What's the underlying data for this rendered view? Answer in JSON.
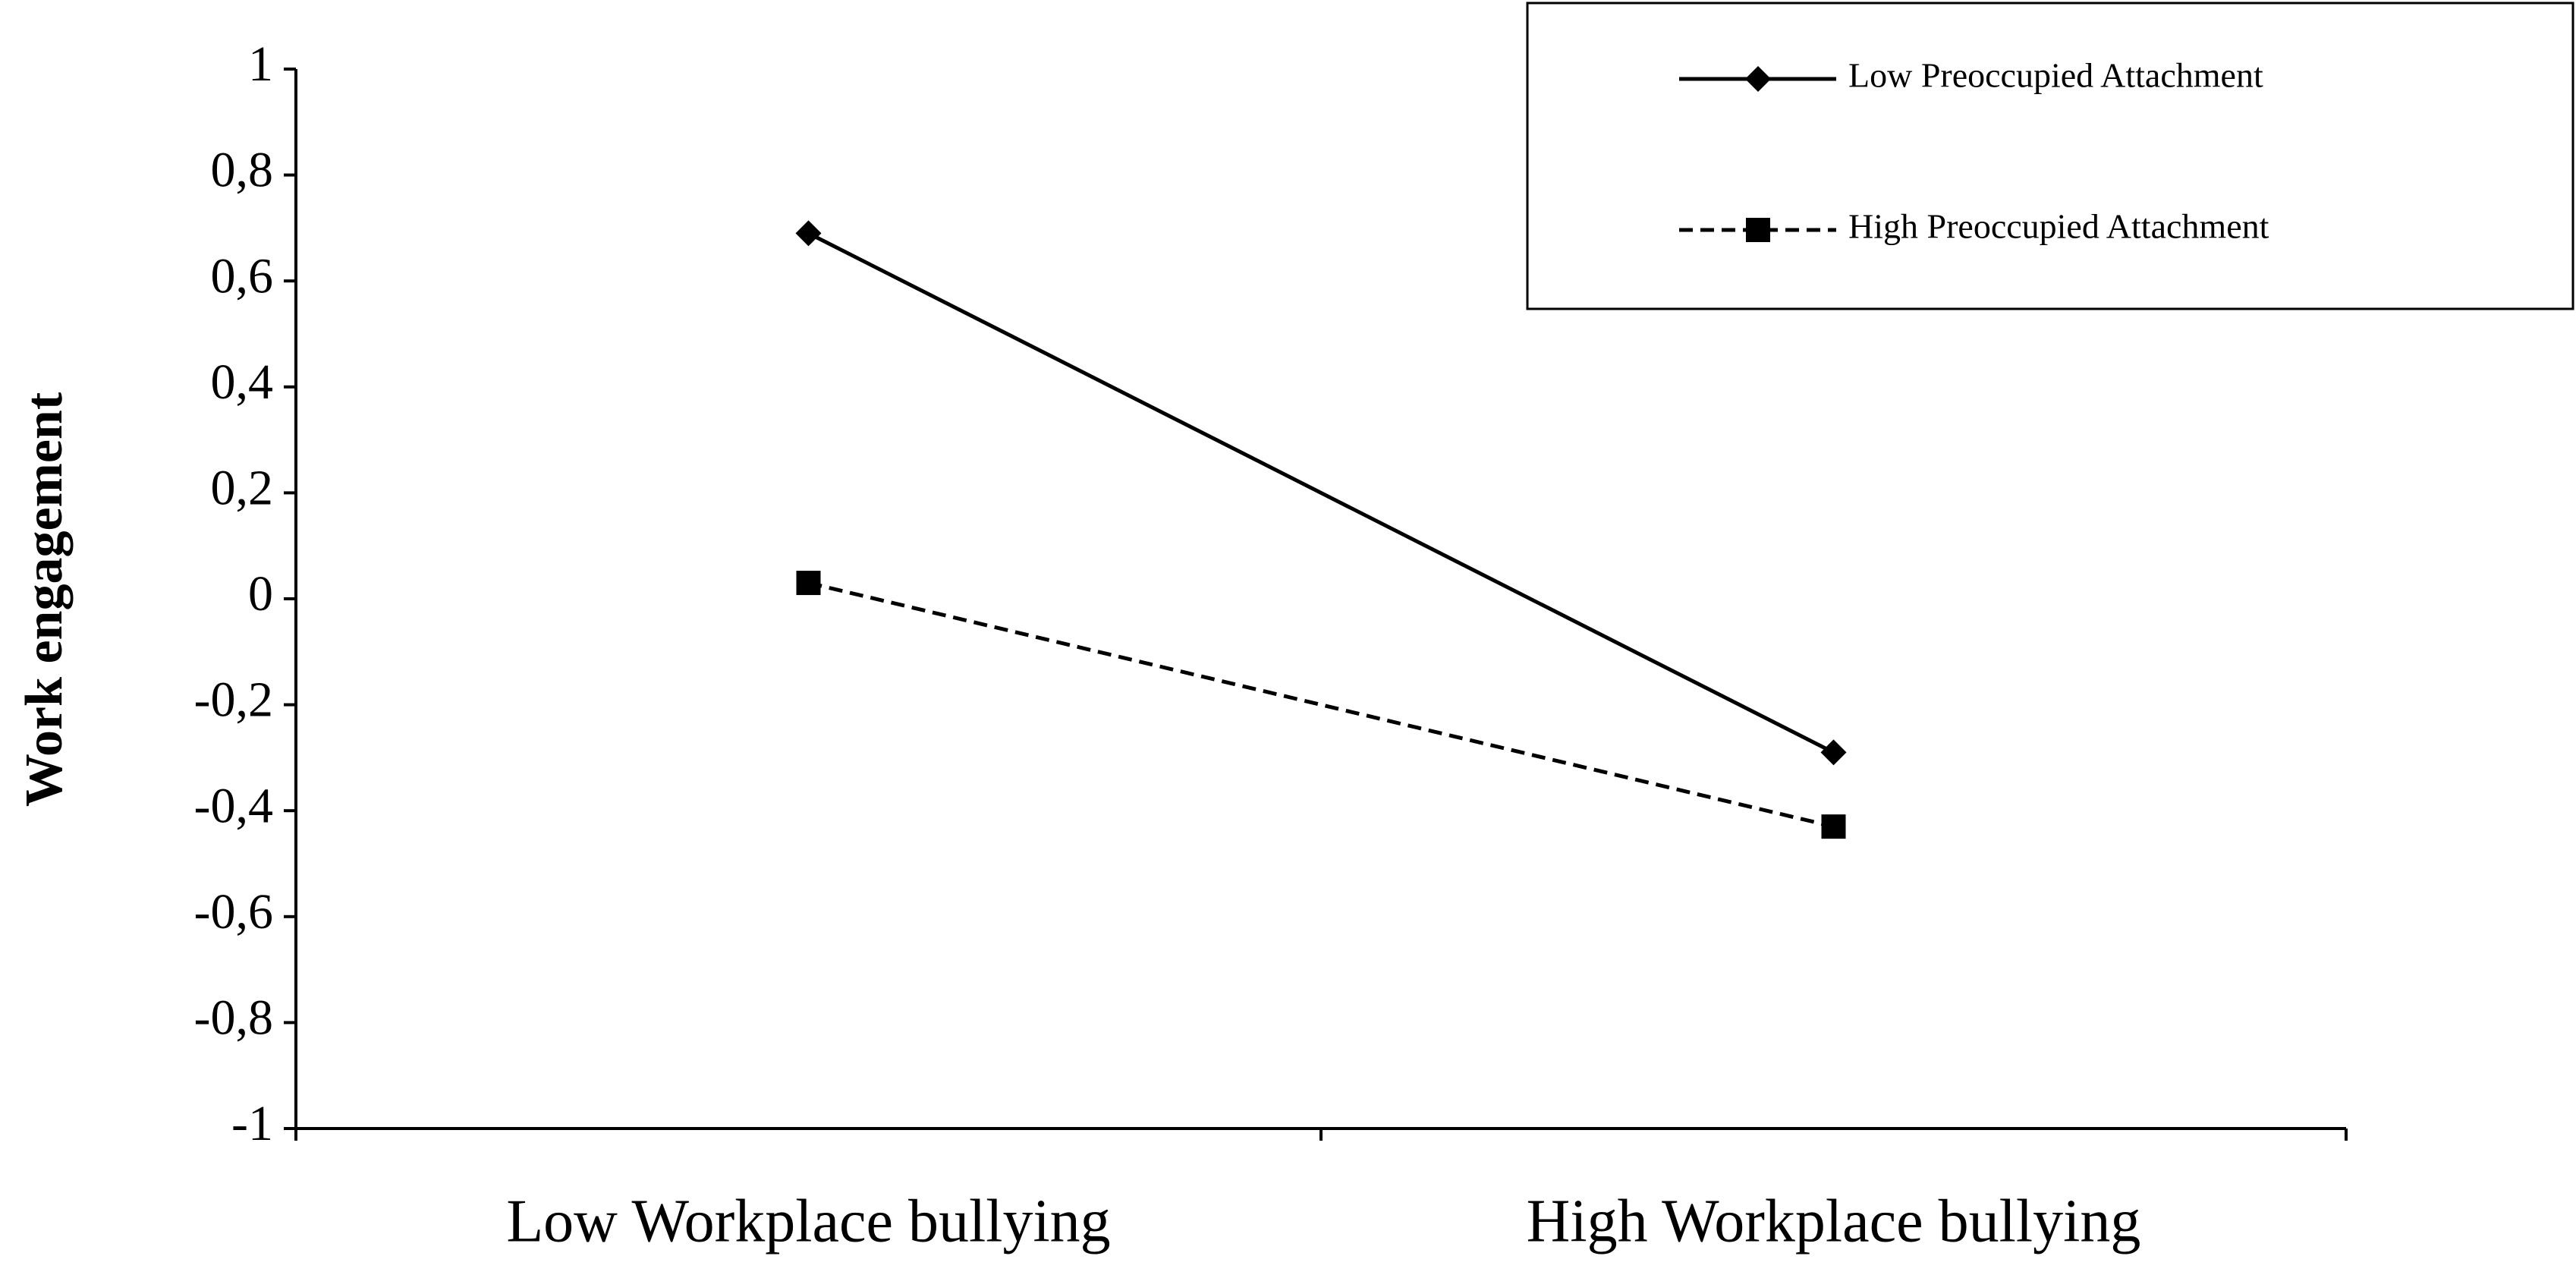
{
  "chart_data": {
    "type": "line",
    "y_label": "Work engagement",
    "categories": [
      "Low Workplace bullying",
      "High Workplace bullying"
    ],
    "series": [
      {
        "name": "Low Preoccupied Attachment",
        "color": "#000000",
        "line_style": "solid",
        "marker": "diamond",
        "values": [
          0.69,
          -0.29
        ]
      },
      {
        "name": "High Preoccupied Attachment",
        "color": "#000000",
        "line_style": "dashed",
        "marker": "square",
        "values": [
          0.03,
          -0.43
        ]
      }
    ],
    "ylim": [
      -1,
      1
    ],
    "yticks": [
      -1,
      {
        "value": -0.8,
        "label": "-0,8"
      },
      {
        "value": -0.6,
        "label": "-0,6"
      },
      {
        "value": -0.4,
        "label": "-0,4"
      },
      {
        "value": -0.2,
        "label": "-0,2"
      },
      0,
      {
        "value": 0.2,
        "label": "0,2"
      },
      {
        "value": 0.4,
        "label": "0,4"
      },
      {
        "value": 0.6,
        "label": "0,6"
      },
      {
        "value": 0.8,
        "label": "0,8"
      },
      1
    ],
    "grid": false,
    "legend": "upper right"
  }
}
